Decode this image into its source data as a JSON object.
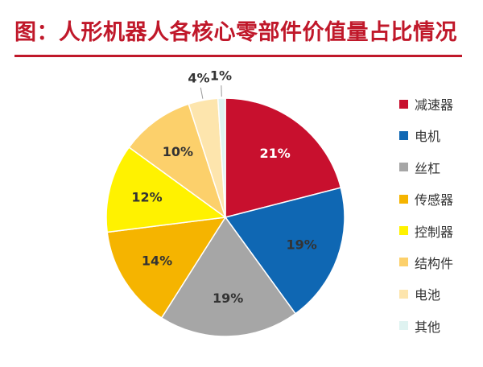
{
  "title": "图：人形机器人各核心零部件价值量占比情况",
  "chart_data": {
    "type": "pie",
    "categories": [
      "减速器",
      "电机",
      "丝杠",
      "传感器",
      "控制器",
      "结构件",
      "电池",
      "其他"
    ],
    "values": [
      21,
      19,
      19,
      14,
      12,
      10,
      4,
      1
    ],
    "labels": [
      "21%",
      "19%",
      "19%",
      "14%",
      "12%",
      "10%",
      "4%",
      "1%"
    ],
    "colors": [
      "#c8102e",
      "#0f67b3",
      "#a6a6a6",
      "#f5b400",
      "#fff200",
      "#fcd06b",
      "#fde5ad",
      "#dff3f1"
    ],
    "label_colors": [
      "#ffffff",
      "#333333",
      "#333333",
      "#333333",
      "#333333",
      "#333333",
      "#333333",
      "#333333"
    ],
    "start_angle": "12 o'clock",
    "direction": "clockwise",
    "legend_position": "right"
  }
}
